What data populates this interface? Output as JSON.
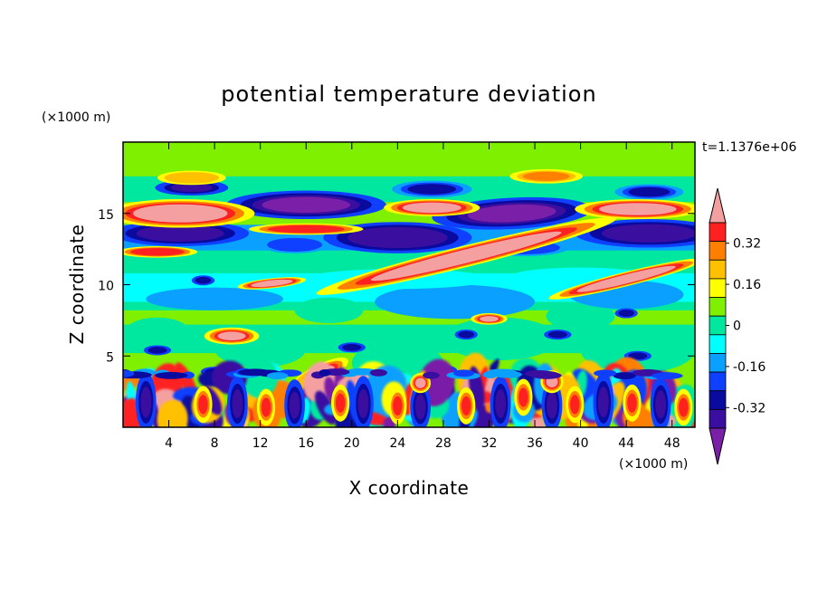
{
  "chart_data": {
    "type": "heatmap",
    "title": "potential temperature deviation",
    "xlabel": "X coordinate",
    "ylabel": "Z coordinate",
    "x_unit": "(×1000 m)",
    "y_unit": "(×1000 m)",
    "time_label": "t=1.1376e+06",
    "xlim": [
      0,
      50
    ],
    "ylim": [
      0,
      20
    ],
    "x_ticks": [
      4,
      8,
      12,
      16,
      20,
      24,
      28,
      32,
      36,
      40,
      44,
      48
    ],
    "y_ticks": [
      5,
      10,
      15
    ],
    "colorbar": {
      "levels": [
        -0.48,
        -0.4,
        -0.32,
        -0.24,
        -0.16,
        -0.08,
        0,
        0.08,
        0.16,
        0.24,
        0.32,
        0.4,
        0.48
      ],
      "labels": [
        "0.32",
        "0.16",
        "0",
        "-0.16",
        "-0.32"
      ],
      "label_values": [
        0.32,
        0.16,
        0,
        -0.16,
        -0.32
      ],
      "colors": [
        "#7a1fa8",
        "#3a0fa0",
        "#0a0a9e",
        "#1040ff",
        "#0aa0ff",
        "#00ffff",
        "#00e8a0",
        "#7ff000",
        "#ffff00",
        "#ffc000",
        "#ff8000",
        "#ff2020",
        "#f4a0a0"
      ]
    },
    "features": [
      {
        "type": "band",
        "z": 14.8,
        "thickness": 1.3,
        "value": 0.45,
        "note": "warm layer upper left"
      },
      {
        "type": "band",
        "z": 13.5,
        "thickness": 1.0,
        "value": -0.4,
        "note": "cold layer"
      },
      {
        "type": "band",
        "z": 16.8,
        "thickness": 0.8,
        "value": -0.3,
        "note": "cold layer top"
      },
      {
        "type": "band",
        "z": 10.0,
        "thickness": 1.5,
        "value": -0.08,
        "note": "cyan layer"
      },
      {
        "type": "band",
        "z": 2.0,
        "thickness": 3.5,
        "value": 0.0,
        "note": "turbulent boundary layer"
      }
    ]
  }
}
